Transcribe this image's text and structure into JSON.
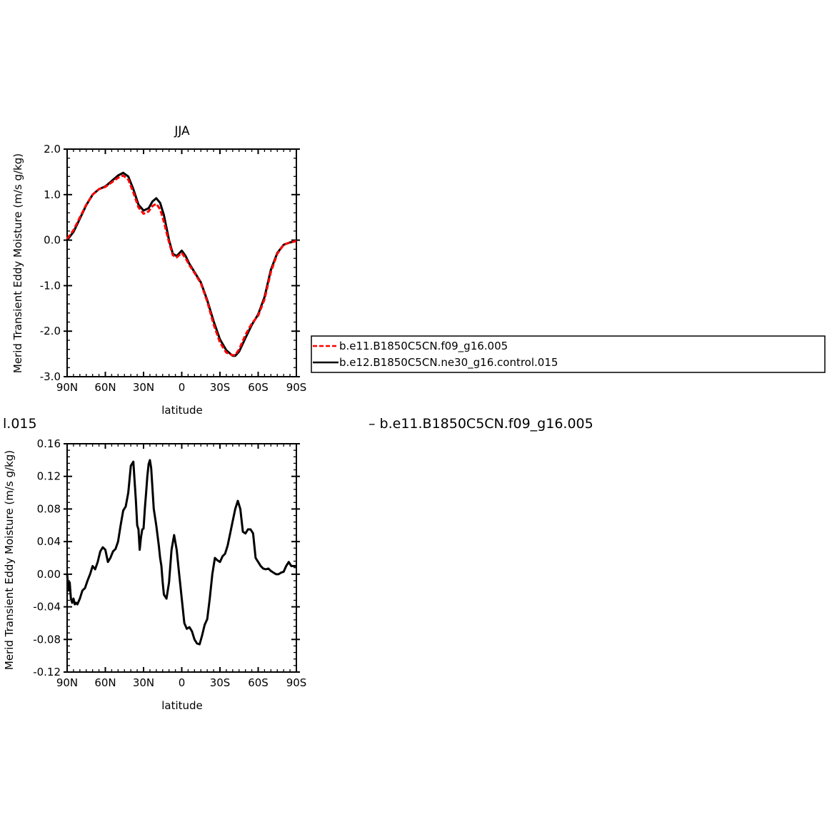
{
  "chart_data": [
    {
      "type": "line",
      "title": "JJA",
      "xlabel": "latitude",
      "ylabel": "Merid Transient Eddy Moisture (m/s g/kg)",
      "xlim": [
        90,
        -90
      ],
      "ylim": [
        -3.0,
        2.0
      ],
      "x_tick_labels": [
        "90N",
        "60N",
        "30N",
        "0",
        "30S",
        "60S",
        "90S"
      ],
      "y_tick_labels": [
        "2.0",
        "1.0",
        "0.0",
        "-1.0",
        "-2.0",
        "-3.0"
      ],
      "grid": false,
      "legend_position": "right",
      "series": [
        {
          "name": "b.e11.B1850C5CN.f09_g16.005",
          "color": "#ff0000",
          "style": "dashed",
          "x": [
            90,
            85,
            80,
            75,
            70,
            65,
            60,
            55,
            50,
            46,
            42,
            38,
            34,
            30,
            26,
            23,
            20,
            17,
            14,
            10,
            7,
            4,
            0,
            -3,
            -6,
            -10,
            -15,
            -20,
            -25,
            -30,
            -35,
            -40,
            -42,
            -45,
            -50,
            -55,
            -60,
            -65,
            -70,
            -75,
            -80,
            -85,
            -90
          ],
          "y": [
            0.03,
            0.22,
            0.5,
            0.78,
            1.0,
            1.12,
            1.17,
            1.27,
            1.37,
            1.42,
            1.33,
            1.05,
            0.72,
            0.58,
            0.63,
            0.75,
            0.8,
            0.68,
            0.4,
            -0.05,
            -0.33,
            -0.38,
            -0.28,
            -0.4,
            -0.55,
            -0.72,
            -0.95,
            -1.35,
            -1.85,
            -2.25,
            -2.47,
            -2.53,
            -2.52,
            -2.4,
            -2.08,
            -1.83,
            -1.66,
            -1.3,
            -0.7,
            -0.3,
            -0.1,
            -0.05,
            -0.02
          ]
        },
        {
          "name": "b.e12.B1850C5CN.ne30_g16.control.015",
          "color": "#000000",
          "style": "solid",
          "x": [
            90,
            85,
            80,
            75,
            70,
            65,
            60,
            55,
            50,
            46,
            42,
            38,
            34,
            30,
            26,
            23,
            20,
            17,
            14,
            10,
            7,
            4,
            0,
            -3,
            -6,
            -10,
            -15,
            -20,
            -25,
            -30,
            -35,
            -40,
            -42,
            -45,
            -50,
            -55,
            -60,
            -65,
            -70,
            -75,
            -80,
            -85,
            -90
          ],
          "y": [
            0.0,
            0.18,
            0.47,
            0.77,
            1.0,
            1.12,
            1.18,
            1.3,
            1.42,
            1.48,
            1.4,
            1.12,
            0.78,
            0.65,
            0.7,
            0.85,
            0.92,
            0.82,
            0.55,
            0.0,
            -0.3,
            -0.35,
            -0.23,
            -0.35,
            -0.52,
            -0.7,
            -0.93,
            -1.32,
            -1.78,
            -2.18,
            -2.42,
            -2.54,
            -2.54,
            -2.45,
            -2.15,
            -1.86,
            -1.63,
            -1.25,
            -0.65,
            -0.28,
            -0.1,
            -0.05,
            -0.02
          ]
        }
      ]
    },
    {
      "type": "line",
      "title": "",
      "title_fragment": "l.015",
      "xlabel": "latitude",
      "ylabel": "Merid Transient Eddy Moisture (m/s g/kg)",
      "xlim": [
        90,
        -90
      ],
      "ylim": [
        -0.12,
        0.16
      ],
      "x_tick_labels": [
        "90N",
        "60N",
        "30N",
        "0",
        "30S",
        "60S",
        "90S"
      ],
      "y_tick_labels": [
        "0.16",
        "0.12",
        "0.08",
        "0.04",
        "0.00",
        "-0.04",
        "-0.08",
        "-0.12"
      ],
      "grid": false,
      "header_right_text": "– b.e11.B1850C5CN.f09_g16.005",
      "series": [
        {
          "color": "#000000",
          "style": "solid",
          "x": [
            90,
            89,
            88,
            87,
            86,
            85,
            84,
            83,
            82,
            80,
            78,
            76,
            74,
            72,
            70,
            68,
            66,
            64,
            62,
            60,
            58,
            56,
            54,
            52,
            50,
            48,
            46,
            44,
            42,
            40,
            38,
            36,
            35,
            34,
            33,
            32,
            31,
            30,
            29,
            28,
            27,
            26,
            25,
            24,
            22,
            20,
            18,
            17,
            16,
            15,
            14,
            12,
            10,
            8,
            6,
            4,
            2,
            0,
            -2,
            -4,
            -6,
            -8,
            -10,
            -12,
            -14,
            -16,
            -18,
            -20,
            -22,
            -24,
            -26,
            -28,
            -30,
            -32,
            -34,
            -36,
            -38,
            -40,
            -42,
            -44,
            -46,
            -48,
            -50,
            -52,
            -54,
            -56,
            -58,
            -60,
            -62,
            -64,
            -66,
            -68,
            -70,
            -72,
            -74,
            -76,
            -78,
            -80,
            -82,
            -84,
            -86,
            -88,
            -89,
            -90
          ],
          "y": [
            0.0,
            -0.02,
            -0.01,
            -0.03,
            -0.035,
            -0.03,
            -0.037,
            -0.035,
            -0.037,
            -0.03,
            -0.02,
            -0.017,
            -0.008,
            0.0,
            0.01,
            0.006,
            0.015,
            0.028,
            0.033,
            0.03,
            0.015,
            0.02,
            0.028,
            0.031,
            0.04,
            0.06,
            0.078,
            0.083,
            0.1,
            0.133,
            0.138,
            0.09,
            0.06,
            0.055,
            0.03,
            0.045,
            0.055,
            0.056,
            0.08,
            0.1,
            0.12,
            0.135,
            0.14,
            0.13,
            0.08,
            0.06,
            0.035,
            0.02,
            0.01,
            -0.01,
            -0.025,
            -0.03,
            -0.01,
            0.03,
            0.048,
            0.03,
            0.0,
            -0.03,
            -0.06,
            -0.067,
            -0.065,
            -0.07,
            -0.08,
            -0.085,
            -0.086,
            -0.075,
            -0.062,
            -0.055,
            -0.03,
            0.0,
            0.02,
            0.017,
            0.015,
            0.022,
            0.025,
            0.035,
            0.05,
            0.065,
            0.08,
            0.09,
            0.08,
            0.052,
            0.05,
            0.055,
            0.055,
            0.05,
            0.02,
            0.015,
            0.01,
            0.007,
            0.006,
            0.007,
            0.004,
            0.002,
            0.0,
            0.0,
            0.002,
            0.003,
            0.01,
            0.015,
            0.01,
            0.01,
            0.01,
            0.01
          ]
        }
      ]
    }
  ]
}
